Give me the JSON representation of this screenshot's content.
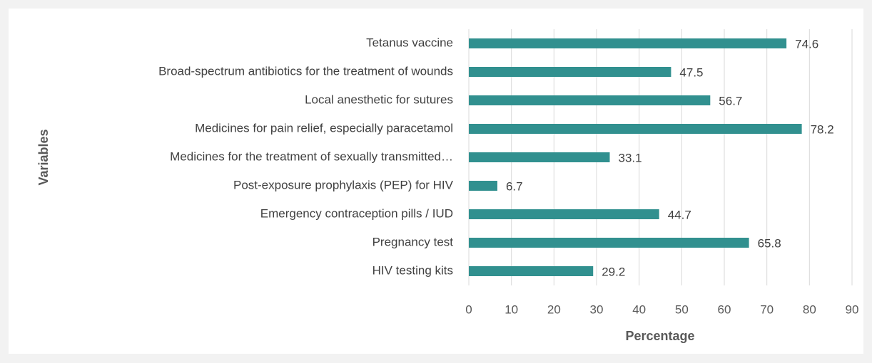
{
  "chart_data": {
    "type": "barh",
    "categories": [
      "Tetanus vaccine",
      "Broad-spectrum antibiotics for the treatment of wounds",
      "Local anesthetic for sutures",
      "Medicines for pain relief, especially paracetamol",
      "Medicines for the treatment of sexually transmitted…",
      "Post-exposure prophylaxis (PEP) for HIV",
      "Emergency contraception pills / IUD",
      "Pregnancy test",
      "HIV testing kits"
    ],
    "values": [
      74.6,
      47.5,
      56.7,
      78.2,
      33.1,
      6.7,
      44.7,
      65.8,
      29.2
    ],
    "color": "#31908f",
    "xlabel": "Percentage",
    "ylabel": "Variables",
    "xlim": [
      0,
      90
    ],
    "xticks": [
      0,
      10,
      20,
      30,
      40,
      50,
      60,
      70,
      80,
      90
    ],
    "grid": true
  }
}
